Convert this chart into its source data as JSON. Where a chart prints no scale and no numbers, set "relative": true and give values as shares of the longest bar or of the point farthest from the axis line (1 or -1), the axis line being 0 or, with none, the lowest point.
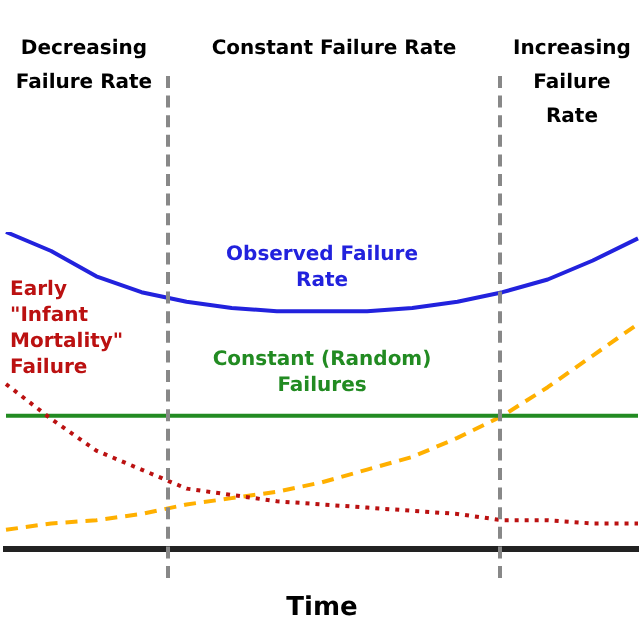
{
  "chart_data": {
    "type": "line",
    "relative": true,
    "xlabel": "Time",
    "legend": false,
    "marker": "none",
    "categories": [
      null,
      null,
      null,
      null,
      null,
      null,
      null,
      null,
      null,
      null,
      null,
      null,
      null,
      null,
      null
    ],
    "series": [
      {
        "name": "Observed Failure Rate",
        "color": "#2222dd",
        "line_style": "solid",
        "values": [
          1.0,
          0.94,
          0.86,
          0.81,
          0.78,
          0.76,
          0.75,
          0.75,
          0.75,
          0.76,
          0.78,
          0.81,
          0.85,
          0.91,
          0.98
        ]
      },
      {
        "name": "Early \"Infant Mortality\" Failure",
        "color": "#bb1111",
        "line_style": "dotted",
        "values": [
          0.52,
          0.41,
          0.31,
          0.25,
          0.19,
          0.17,
          0.15,
          0.14,
          0.13,
          0.12,
          0.11,
          0.09,
          0.09,
          0.08,
          0.08
        ]
      },
      {
        "name": "Constant (Random) Failures",
        "color": "#228b22",
        "line_style": "solid",
        "values": [
          0.42,
          0.42,
          0.42,
          0.42,
          0.42,
          0.42,
          0.42,
          0.42,
          0.42,
          0.42,
          0.42,
          0.42,
          0.42,
          0.42,
          0.42
        ]
      },
      {
        "color": "#ffb000",
        "line_style": "dashed",
        "values": [
          0.06,
          0.08,
          0.09,
          0.11,
          0.14,
          0.16,
          0.18,
          0.21,
          0.25,
          0.29,
          0.35,
          0.42,
          0.51,
          0.61,
          0.71
        ]
      }
    ],
    "annotations": [
      "Decreasing Failure Rate",
      "Constant Failure Rate",
      "Increasing Failure Rate"
    ]
  }
}
